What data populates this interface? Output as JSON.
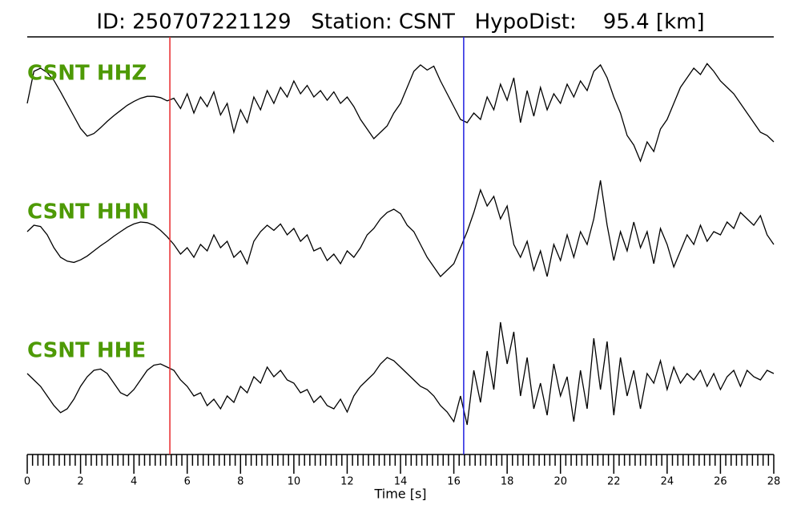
{
  "chart_data": {
    "type": "line",
    "title": "ID: 250707221129   Station: CSNT   HypoDist:    95.4 [km]",
    "xlabel": "Time [s]",
    "xlim": [
      0,
      28
    ],
    "xticks": [
      0,
      2,
      4,
      6,
      8,
      10,
      12,
      14,
      16,
      18,
      20,
      22,
      24,
      26,
      28
    ],
    "xminorticks": [
      0.2,
      0.4,
      0.6,
      0.8,
      1,
      1.2,
      1.4,
      1.6,
      1.8,
      2.2,
      2.4,
      2.6,
      2.8,
      3,
      3.2,
      3.4,
      3.6,
      3.8,
      4.2,
      4.4,
      4.6,
      4.8,
      5,
      5.2,
      5.4,
      5.6,
      5.8,
      6.2,
      6.4,
      6.6,
      6.8,
      7,
      7.2,
      7.4,
      7.6,
      7.8,
      8.2,
      8.4,
      8.6,
      8.8,
      9,
      9.2,
      9.4,
      9.6,
      9.8,
      10.2,
      10.4,
      10.6,
      10.8,
      11,
      11.2,
      11.4,
      11.6,
      11.8,
      12.2,
      12.4,
      12.6,
      12.8,
      13,
      13.2,
      13.4,
      13.6,
      13.8,
      14.2,
      14.4,
      14.6,
      14.8,
      15,
      15.2,
      15.4,
      15.6,
      15.8,
      16.2,
      16.4,
      16.6,
      16.8,
      17,
      17.2,
      17.4,
      17.6,
      17.8,
      18.2,
      18.4,
      18.6,
      18.8,
      19,
      19.2,
      19.4,
      19.6,
      19.8,
      20.2,
      20.4,
      20.6,
      20.8,
      21,
      21.2,
      21.4,
      21.6,
      21.8,
      22.2,
      22.4,
      22.6,
      22.8,
      23,
      23.2,
      23.4,
      23.6,
      23.8,
      24.2,
      24.4,
      24.6,
      24.8,
      25,
      25.2,
      25.4,
      25.6,
      25.8,
      26.2,
      26.4,
      26.6,
      26.8,
      27,
      27.2,
      27.4,
      27.6,
      27.8
    ],
    "ylim": [
      -1,
      1
    ],
    "label_color": "#4e9a06",
    "vlines": [
      {
        "x": 5.35,
        "color": "#e8282b"
      },
      {
        "x": 16.37,
        "color": "#1f1fe0"
      }
    ],
    "x": [
      0,
      0.25,
      0.5,
      0.75,
      1,
      1.25,
      1.5,
      1.75,
      2,
      2.25,
      2.5,
      2.75,
      3,
      3.25,
      3.5,
      3.75,
      4,
      4.25,
      4.5,
      4.75,
      5,
      5.25,
      5.5,
      5.75,
      6,
      6.25,
      6.5,
      6.75,
      7,
      7.25,
      7.5,
      7.75,
      8,
      8.25,
      8.5,
      8.75,
      9,
      9.25,
      9.5,
      9.75,
      10,
      10.25,
      10.5,
      10.75,
      11,
      11.25,
      11.5,
      11.75,
      12,
      12.25,
      12.5,
      12.75,
      13,
      13.25,
      13.5,
      13.75,
      14,
      14.25,
      14.5,
      14.75,
      15,
      15.25,
      15.5,
      15.75,
      16,
      16.25,
      16.5,
      16.75,
      17,
      17.25,
      17.5,
      17.75,
      18,
      18.25,
      18.5,
      18.75,
      19,
      19.25,
      19.5,
      19.75,
      20,
      20.25,
      20.5,
      20.75,
      21,
      21.25,
      21.5,
      21.75,
      22,
      22.25,
      22.5,
      22.75,
      23,
      23.25,
      23.5,
      23.75,
      24,
      24.25,
      24.5,
      24.75,
      25,
      25.25,
      25.5,
      25.75,
      26,
      26.25,
      26.5,
      26.75,
      27,
      27.25,
      27.5,
      27.75,
      28
    ],
    "series": [
      {
        "name": "CSNT HHZ",
        "color": "#000000",
        "values": [
          0.2,
          0.7,
          0.75,
          0.68,
          0.56,
          0.38,
          0.19,
          0,
          -0.19,
          -0.31,
          -0.27,
          -0.18,
          -0.08,
          0.01,
          0.09,
          0.17,
          0.23,
          0.28,
          0.31,
          0.31,
          0.29,
          0.24,
          0.28,
          0.12,
          0.35,
          0.05,
          0.3,
          0.15,
          0.38,
          0.02,
          0.2,
          -0.25,
          0.1,
          -0.1,
          0.3,
          0.1,
          0.4,
          0.2,
          0.45,
          0.3,
          0.55,
          0.35,
          0.48,
          0.3,
          0.4,
          0.25,
          0.38,
          0.2,
          0.3,
          0.15,
          -0.05,
          -0.2,
          -0.35,
          -0.25,
          -0.15,
          0.05,
          0.2,
          0.45,
          0.7,
          0.8,
          0.72,
          0.78,
          0.55,
          0.35,
          0.15,
          -0.05,
          -0.1,
          0.05,
          -0.05,
          0.3,
          0.1,
          0.5,
          0.25,
          0.6,
          -0.1,
          0.4,
          0,
          0.45,
          0.1,
          0.35,
          0.2,
          0.5,
          0.3,
          0.55,
          0.4,
          0.7,
          0.8,
          0.6,
          0.3,
          0.05,
          -0.3,
          -0.45,
          -0.7,
          -0.4,
          -0.55,
          -0.2,
          -0.05,
          0.2,
          0.45,
          0.6,
          0.75,
          0.65,
          0.82,
          0.7,
          0.55,
          0.45,
          0.35,
          0.2,
          0.05,
          -0.1,
          -0.25,
          -0.3,
          -0.4
        ]
      },
      {
        "name": "CSNT HHN",
        "color": "#000000",
        "values": [
          0.1,
          0.2,
          0.18,
          0.05,
          -0.15,
          -0.3,
          -0.36,
          -0.38,
          -0.34,
          -0.28,
          -0.2,
          -0.12,
          -0.05,
          0.03,
          0.1,
          0.17,
          0.22,
          0.25,
          0.24,
          0.2,
          0.12,
          0.02,
          -0.1,
          -0.25,
          -0.15,
          -0.3,
          -0.1,
          -0.2,
          0.05,
          -0.15,
          -0.05,
          -0.3,
          -0.2,
          -0.4,
          -0.05,
          0.1,
          0.2,
          0.12,
          0.22,
          0.05,
          0.15,
          -0.05,
          0.05,
          -0.2,
          -0.15,
          -0.35,
          -0.25,
          -0.4,
          -0.2,
          -0.3,
          -0.15,
          0.05,
          0.15,
          0.3,
          0.4,
          0.45,
          0.38,
          0.2,
          0.1,
          -0.1,
          -0.3,
          -0.45,
          -0.6,
          -0.5,
          -0.4,
          -0.15,
          0.1,
          0.4,
          0.75,
          0.5,
          0.65,
          0.3,
          0.5,
          -0.1,
          -0.3,
          -0.05,
          -0.5,
          -0.2,
          -0.6,
          -0.1,
          -0.35,
          0.05,
          -0.3,
          0.1,
          -0.1,
          0.3,
          0.9,
          0.2,
          -0.35,
          0.1,
          -0.2,
          0.25,
          -0.15,
          0.1,
          -0.4,
          0.15,
          -0.1,
          -0.45,
          -0.2,
          0.05,
          -0.1,
          0.2,
          -0.05,
          0.1,
          0.05,
          0.25,
          0.15,
          0.4,
          0.3,
          0.2,
          0.35,
          0.05,
          -0.1
        ]
      },
      {
        "name": "CSNT HHE",
        "color": "#000000",
        "values": [
          0.05,
          -0.05,
          -0.15,
          -0.3,
          -0.45,
          -0.56,
          -0.5,
          -0.35,
          -0.15,
          0,
          0.1,
          0.12,
          0.05,
          -0.1,
          -0.25,
          -0.3,
          -0.2,
          -0.05,
          0.1,
          0.18,
          0.2,
          0.15,
          0.1,
          -0.05,
          -0.15,
          -0.3,
          -0.25,
          -0.45,
          -0.35,
          -0.5,
          -0.3,
          -0.4,
          -0.15,
          -0.25,
          0,
          -0.1,
          0.15,
          0,
          0.1,
          -0.05,
          -0.1,
          -0.25,
          -0.2,
          -0.4,
          -0.3,
          -0.45,
          -0.5,
          -0.35,
          -0.55,
          -0.3,
          -0.15,
          -0.05,
          0.05,
          0.2,
          0.3,
          0.25,
          0.15,
          0.05,
          -0.05,
          -0.15,
          -0.2,
          -0.3,
          -0.45,
          -0.55,
          -0.7,
          -0.3,
          -0.75,
          0.1,
          -0.4,
          0.4,
          -0.2,
          0.85,
          0.2,
          0.7,
          -0.3,
          0.3,
          -0.5,
          -0.1,
          -0.6,
          0.2,
          -0.3,
          0,
          -0.7,
          0.1,
          -0.5,
          0.6,
          -0.2,
          0.55,
          -0.6,
          0.3,
          -0.3,
          0.1,
          -0.5,
          0.05,
          -0.1,
          0.25,
          -0.2,
          0.15,
          -0.1,
          0.05,
          -0.05,
          0.1,
          -0.15,
          0.05,
          -0.2,
          0,
          0.1,
          -0.15,
          0.1,
          0,
          -0.05,
          0.1,
          0.05
        ]
      }
    ]
  }
}
